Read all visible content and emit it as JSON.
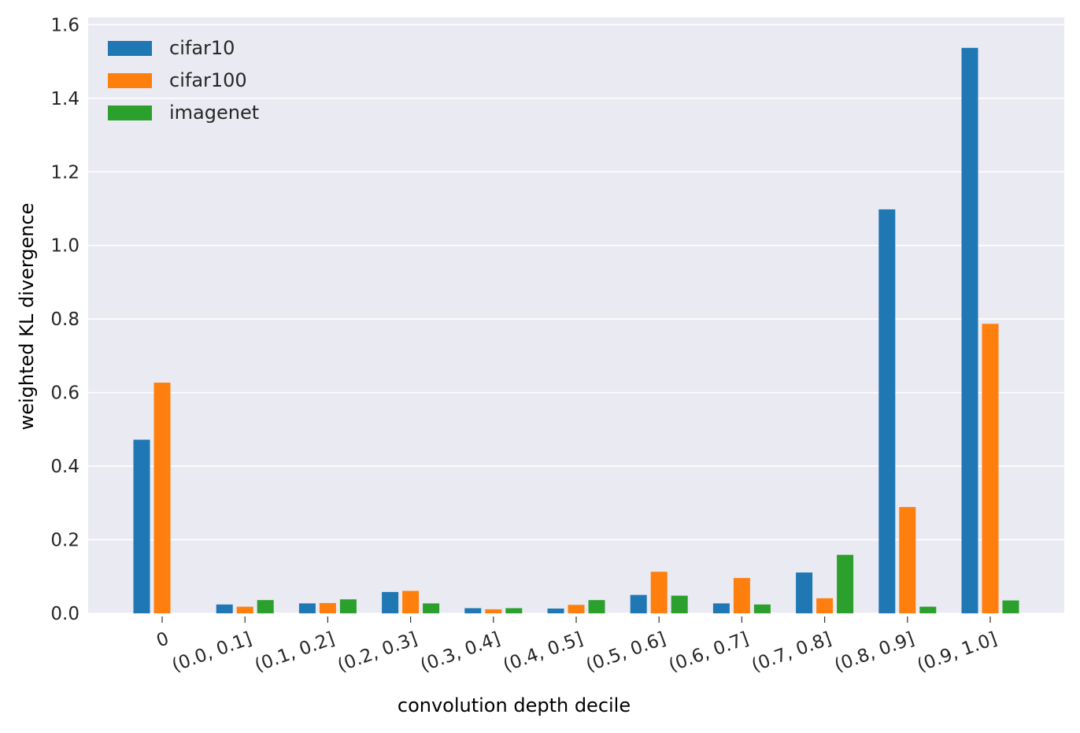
{
  "chart_data": {
    "type": "bar",
    "xlabel": "convolution depth decile",
    "ylabel": "weighted KL divergence",
    "categories": [
      "0",
      "(0.0, 0.1]",
      "(0.1, 0.2]",
      "(0.2, 0.3]",
      "(0.3, 0.4]",
      "(0.4, 0.5]",
      "(0.5, 0.6]",
      "(0.6, 0.7]",
      "(0.7, 0.8]",
      "(0.8, 0.9]",
      "(0.9, 1.0]"
    ],
    "yticks": [
      "0.0",
      "0.2",
      "0.4",
      "0.6",
      "0.8",
      "1.0",
      "1.2",
      "1.4",
      "1.6"
    ],
    "ylim": [
      0,
      1.62
    ],
    "grid": true,
    "legend_position": "top-left",
    "series": [
      {
        "name": "cifar10",
        "color": "#1f77b4",
        "values": [
          0.472,
          0.024,
          0.027,
          0.058,
          0.014,
          0.013,
          0.05,
          0.027,
          0.111,
          1.098,
          1.537
        ]
      },
      {
        "name": "cifar100",
        "color": "#ff7f0e",
        "values": [
          0.627,
          0.018,
          0.028,
          0.061,
          0.011,
          0.023,
          0.113,
          0.096,
          0.041,
          0.289,
          0.787
        ]
      },
      {
        "name": "imagenet",
        "color": "#2ca02c",
        "values": [
          0.0,
          0.036,
          0.038,
          0.027,
          0.014,
          0.036,
          0.048,
          0.024,
          0.159,
          0.018,
          0.035
        ]
      }
    ],
    "style": {
      "background": "#eaeaf2",
      "grid_color": "#ffffff"
    }
  }
}
